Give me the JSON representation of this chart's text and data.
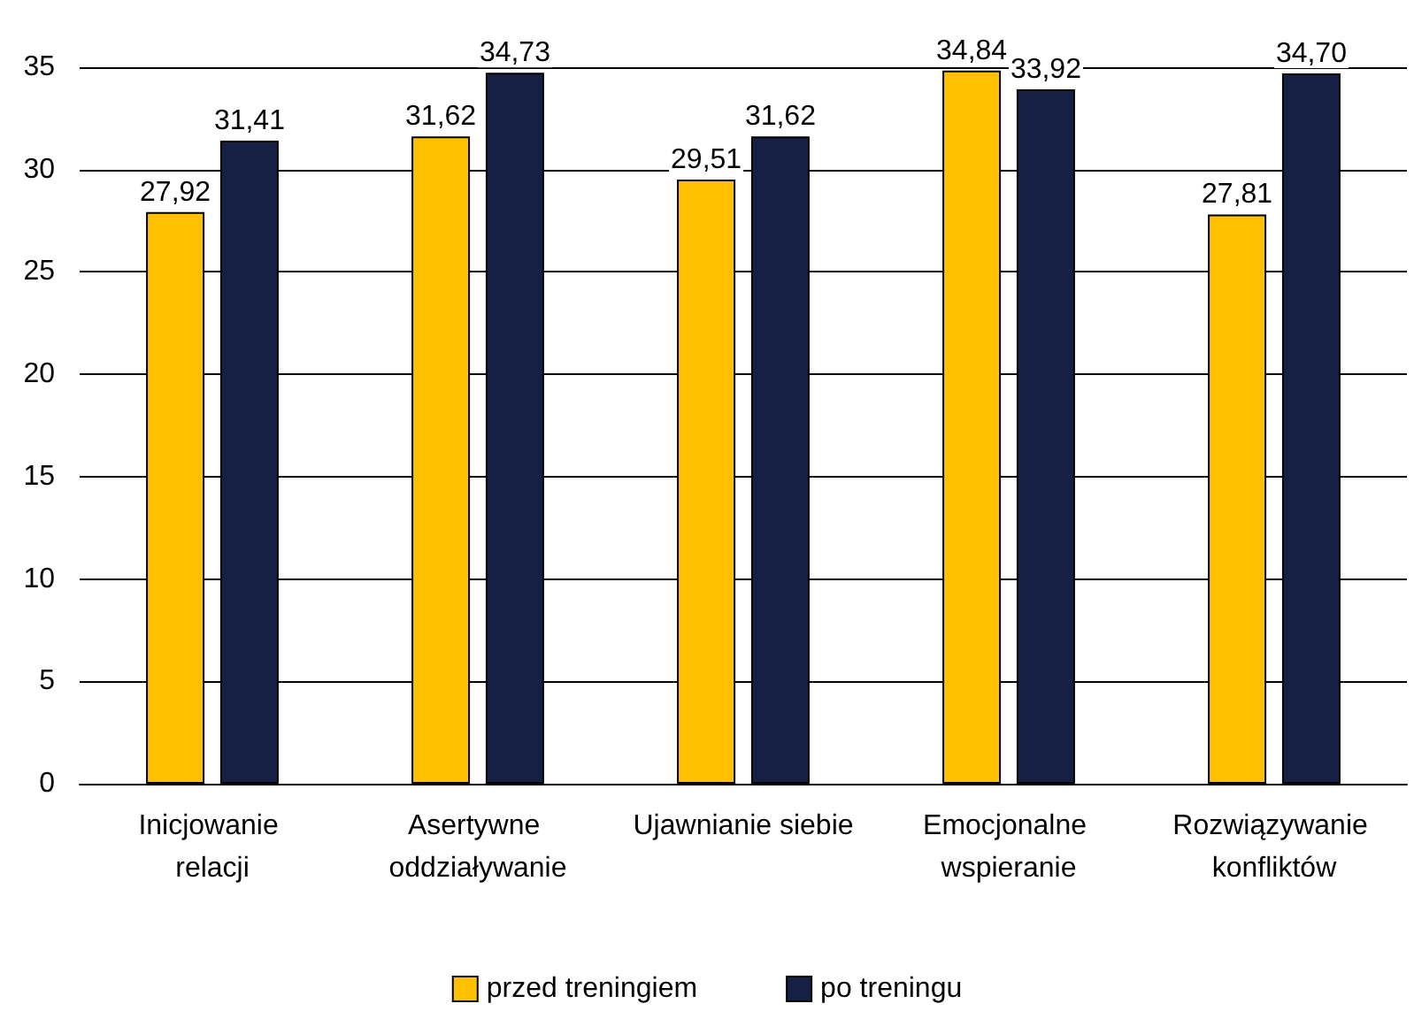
{
  "chart_data": {
    "type": "bar",
    "categories": [
      "Inicjowanie relacji",
      "Asertywne oddziaływanie",
      "Ujawnianie siebie",
      "Emocjonalne wspieranie",
      "Rozwiązywanie konfliktów"
    ],
    "series": [
      {
        "name": "przed treningiem",
        "color": "#ffc000",
        "values": [
          27.92,
          31.62,
          29.51,
          34.84,
          27.81
        ],
        "value_labels": [
          "27,92",
          "31,62",
          "29,51",
          "34,84",
          "27,81"
        ]
      },
      {
        "name": "po treningu",
        "color": "#162044",
        "values": [
          31.41,
          34.73,
          31.62,
          33.92,
          34.7
        ],
        "value_labels": [
          "31,41",
          "34,73",
          "31,62",
          "33,92",
          "34,70"
        ]
      }
    ],
    "ylim": [
      0,
      35
    ],
    "yticks": [
      0,
      5,
      10,
      15,
      20,
      25,
      30,
      35
    ],
    "grid": "y",
    "legend": "bottom"
  }
}
